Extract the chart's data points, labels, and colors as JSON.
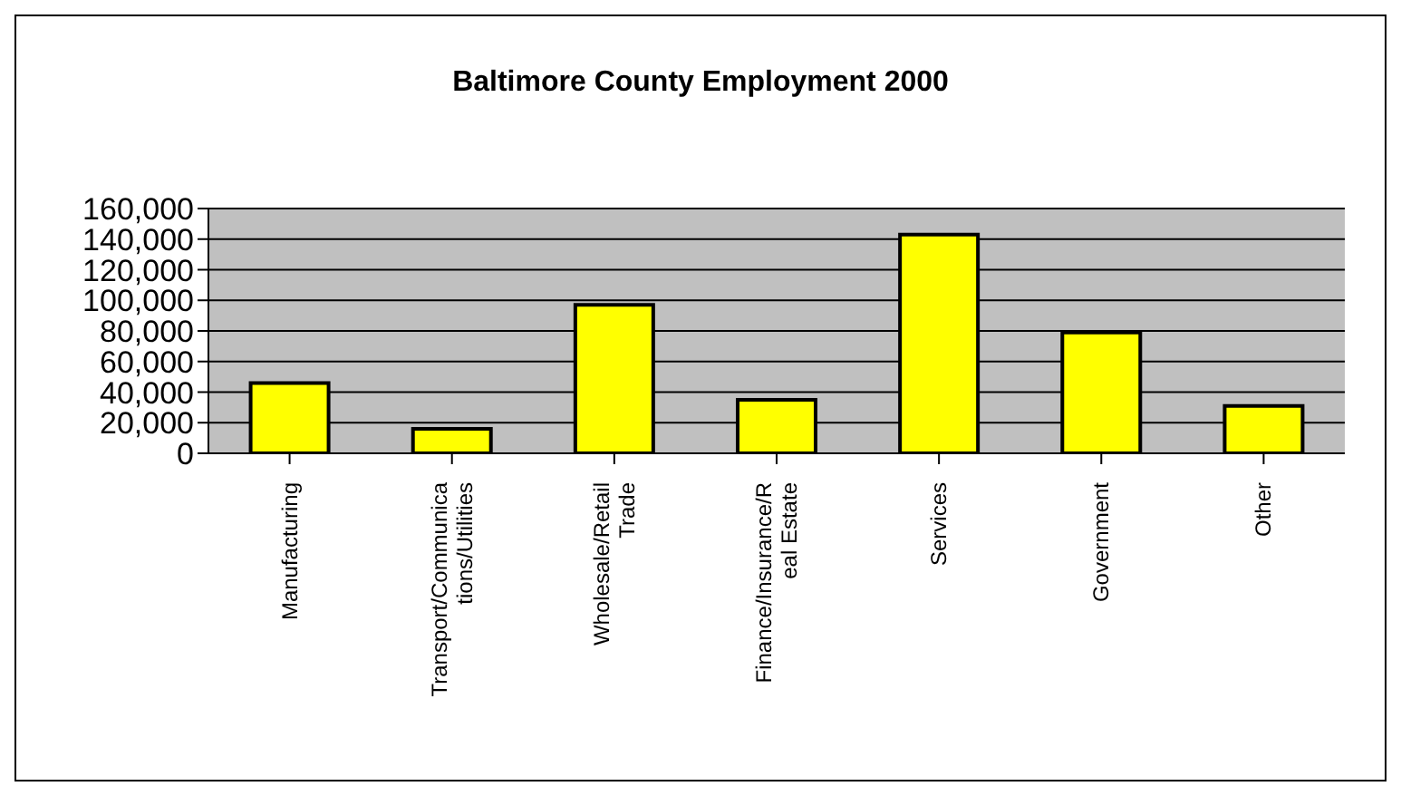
{
  "chart_data": {
    "type": "bar",
    "title": "Baltimore County Employment 2000",
    "categories": [
      "Manufacturing",
      "Transport/Communications/Utilities",
      "Wholesale/Retail Trade",
      "Finance/Insurance/Real Estate",
      "Services",
      "Government",
      "Other"
    ],
    "values": [
      46000,
      16000,
      97000,
      35000,
      143000,
      79000,
      31000
    ],
    "color": "#ffff00",
    "ylim": [
      0,
      160000
    ],
    "yticks": [
      0,
      {
        "value": 20000,
        "label": "20,000"
      },
      {
        "value": 40000,
        "label": "40,000"
      },
      {
        "value": 60000,
        "label": "60,000"
      },
      {
        "value": 80000,
        "label": "80,000"
      },
      {
        "value": 100000,
        "label": "100,000"
      },
      {
        "value": 120000,
        "label": "120,000"
      },
      {
        "value": 140000,
        "label": "140,000"
      },
      {
        "value": 160000,
        "label": "160,000"
      }
    ],
    "grid": "y",
    "legend": false
  }
}
